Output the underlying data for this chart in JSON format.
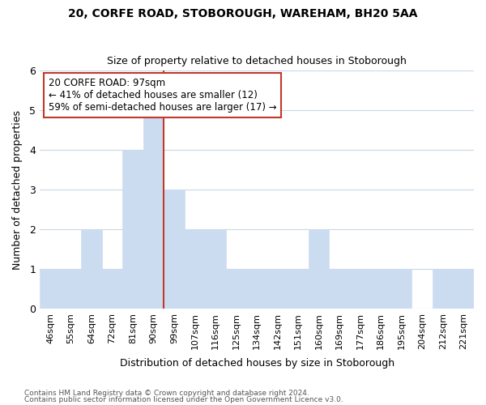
{
  "title1": "20, CORFE ROAD, STOBOROUGH, WAREHAM, BH20 5AA",
  "title2": "Size of property relative to detached houses in Stoborough",
  "xlabel": "Distribution of detached houses by size in Stoborough",
  "ylabel": "Number of detached properties",
  "categories": [
    "46sqm",
    "55sqm",
    "64sqm",
    "72sqm",
    "81sqm",
    "90sqm",
    "99sqm",
    "107sqm",
    "116sqm",
    "125sqm",
    "134sqm",
    "142sqm",
    "151sqm",
    "160sqm",
    "169sqm",
    "177sqm",
    "186sqm",
    "195sqm",
    "204sqm",
    "212sqm",
    "221sqm"
  ],
  "values": [
    1,
    1,
    2,
    1,
    4,
    5,
    3,
    2,
    2,
    1,
    1,
    1,
    1,
    2,
    1,
    1,
    1,
    1,
    0,
    1,
    1
  ],
  "bar_color": "#ccdcf0",
  "bar_edgecolor": "#ccdcf0",
  "highlight_line_index": 6,
  "highlight_line_color": "#c0392b",
  "annotation_text": "20 CORFE ROAD: 97sqm\n← 41% of detached houses are smaller (12)\n59% of semi-detached houses are larger (17) →",
  "annotation_box_color": "white",
  "annotation_box_edgecolor": "#c0392b",
  "ylim": [
    0,
    6
  ],
  "yticks": [
    0,
    1,
    2,
    3,
    4,
    5,
    6
  ],
  "grid_color": "#c8d8e8",
  "footnote1": "Contains HM Land Registry data © Crown copyright and database right 2024.",
  "footnote2": "Contains public sector information licensed under the Open Government Licence v3.0.",
  "bg_color": "#ffffff",
  "plot_bg_color": "#ffffff"
}
